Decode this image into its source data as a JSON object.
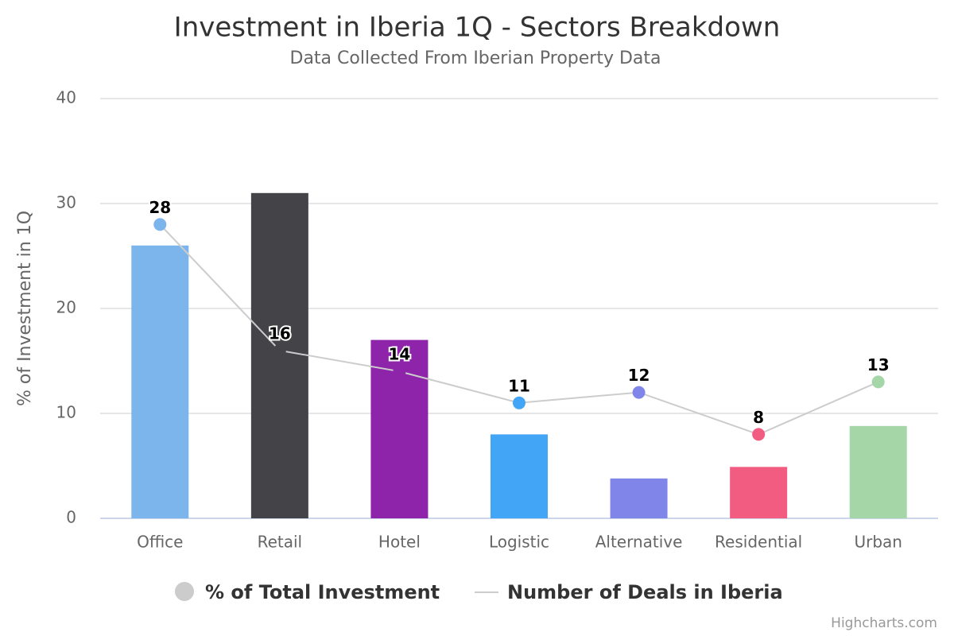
{
  "chart_data": {
    "type": "combo",
    "title": "Investment in Iberia 1Q - Sectors Breakdown",
    "subtitle": "Data Collected From Iberian Property Data",
    "y_axis_title": "% of Investment in 1Q",
    "categories": [
      "Office",
      "Retail",
      "Hotel",
      "Logistic",
      "Alternative",
      "Residential",
      "Urban"
    ],
    "point_colors": [
      "#7cb5ec",
      "#444448",
      "#8e24aa",
      "#42a5f5",
      "#8085e9",
      "#f15c80",
      "#a5d6a7"
    ],
    "series": [
      {
        "name": "% of Total Investment",
        "type": "bar",
        "color": "#cccccc",
        "values": [
          26,
          31,
          17,
          8,
          3.8,
          4.9,
          8.8
        ]
      },
      {
        "name": "Number of Deals in Iberia",
        "type": "line",
        "color": "#cccccc",
        "values": [
          28,
          16,
          14,
          11,
          12,
          8,
          13
        ]
      }
    ],
    "ylim": [
      0,
      40
    ],
    "yticks": [
      0,
      10,
      20,
      30,
      40
    ],
    "grid": true,
    "credits": "Highcharts.com"
  }
}
